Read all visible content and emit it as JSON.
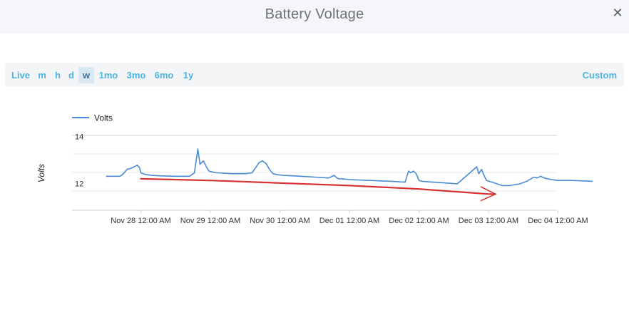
{
  "header": {
    "title": "Battery Voltage",
    "close_icon": "close-icon",
    "close_glyph": "✕"
  },
  "range": {
    "options": [
      "Live",
      "m",
      "h",
      "d",
      "w",
      "1mo",
      "3mo",
      "6mo",
      "1y"
    ],
    "selected": "w",
    "custom_label": "Custom"
  },
  "colors": {
    "series": "#4a8bd6",
    "annotation": "#d93030",
    "accent": "#4fb3e0"
  },
  "chart_data": {
    "type": "line",
    "ylabel": "Volts",
    "yticks": [
      12,
      14
    ],
    "ylim": [
      10,
      14.4
    ],
    "xlim": [
      -0.5,
      6.5
    ],
    "grid": true,
    "legend_position": "top-left",
    "xtick_labels": [
      "Nov 28 12:00 AM",
      "Nov 29 12:00 AM",
      "Nov 30 12:00 AM",
      "Dec 01 12:00 AM",
      "Dec 02 12:00 AM",
      "Dec 03 12:00 AM",
      "Dec 04 12:00 AM"
    ],
    "xtick_positions": [
      0,
      1,
      2,
      3,
      4,
      5,
      6
    ],
    "series": [
      {
        "name": "Volts",
        "x": [
          -0.5,
          -0.3,
          -0.25,
          -0.2,
          -0.15,
          -0.1,
          -0.05,
          -0.02,
          0.0,
          0.05,
          0.15,
          0.3,
          0.5,
          0.7,
          0.77,
          0.82,
          0.85,
          0.87,
          0.9,
          0.95,
          0.98,
          1.03,
          1.1,
          1.3,
          1.5,
          1.6,
          1.7,
          1.75,
          1.8,
          1.85,
          1.9,
          1.95,
          2.05,
          2.3,
          2.5,
          2.7,
          2.78,
          2.82,
          2.85,
          2.9,
          3.0,
          3.3,
          3.6,
          3.8,
          3.85,
          3.88,
          3.92,
          3.96,
          4.0,
          4.05,
          4.2,
          4.4,
          4.55,
          4.83,
          4.86,
          4.9,
          4.93,
          4.97,
          5.05,
          5.2,
          5.3,
          5.45,
          5.55,
          5.65,
          5.7,
          5.75,
          5.8,
          5.9,
          6.0,
          6.2,
          6.5
        ],
        "y": [
          12.0,
          12.0,
          12.15,
          12.4,
          12.45,
          12.55,
          12.65,
          12.5,
          12.2,
          12.12,
          12.05,
          12.02,
          12.0,
          12.0,
          12.2,
          13.6,
          12.7,
          12.8,
          12.9,
          12.5,
          12.3,
          12.25,
          12.2,
          12.15,
          12.15,
          12.2,
          12.8,
          12.9,
          12.75,
          12.4,
          12.15,
          12.1,
          12.05,
          12.0,
          11.95,
          11.9,
          12.05,
          11.9,
          11.85,
          11.85,
          11.8,
          11.75,
          11.7,
          11.65,
          12.3,
          12.2,
          12.3,
          12.15,
          11.75,
          11.7,
          11.65,
          11.6,
          11.55,
          12.55,
          12.15,
          12.4,
          12.1,
          11.75,
          11.65,
          11.45,
          11.45,
          11.55,
          11.7,
          11.95,
          11.9,
          12.0,
          11.9,
          11.8,
          11.75,
          11.75,
          11.7
        ]
      }
    ],
    "annotation": {
      "type": "arrow",
      "x": [
        0.0,
        1.0,
        2.0,
        3.0,
        4.0,
        5.0,
        5.1
      ],
      "y": [
        11.85,
        11.75,
        11.6,
        11.45,
        11.25,
        10.95,
        10.95
      ]
    }
  }
}
